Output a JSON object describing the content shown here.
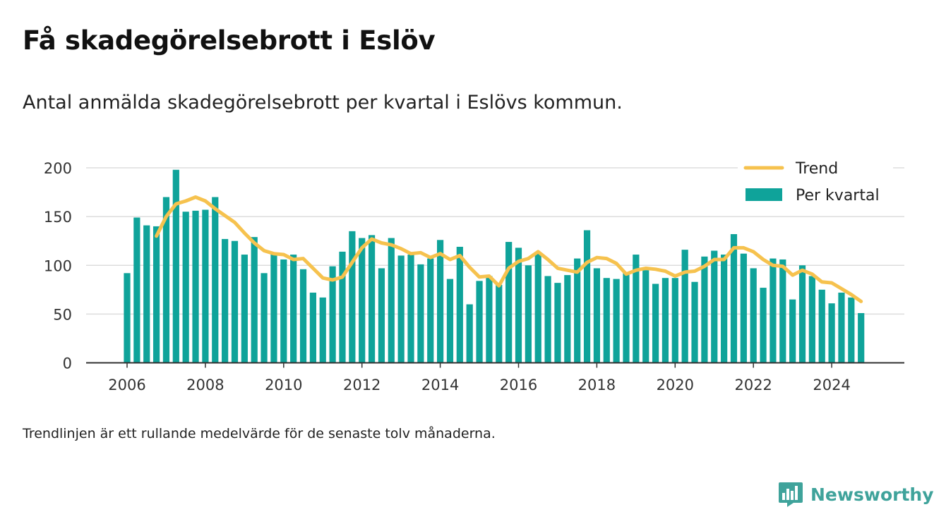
{
  "header": {
    "title": "Få skadegörelsebrott i Eslöv",
    "subtitle": "Antal anmälda skadegörelsebrott per kvartal i Eslövs kommun."
  },
  "footer": {
    "note": "Trendlinjen är ett rullande medelvärde för de senaste tolv månaderna.",
    "brand": "Newsworthy"
  },
  "icons": {
    "brand_logo": "bar-chart-speech-bubble-icon"
  },
  "colors": {
    "bars": "#0fa39a",
    "trend": "#f6c24e",
    "logo": "#3fa39b"
  },
  "chart_data": {
    "type": "bar",
    "x_tick_labels": [
      "2006",
      "2008",
      "2010",
      "2012",
      "2014",
      "2016",
      "2018",
      "2020",
      "2022",
      "2024"
    ],
    "y_tick_labels": [
      "0",
      "50",
      "100",
      "150",
      "200"
    ],
    "ylim": [
      0,
      200
    ],
    "grid": true,
    "legend_position": "top-right",
    "series": [
      {
        "name": "Per kvartal",
        "type": "bar",
        "x": [
          "2006 Q1",
          "2006 Q2",
          "2006 Q3",
          "2006 Q4",
          "2007 Q1",
          "2007 Q2",
          "2007 Q3",
          "2007 Q4",
          "2008 Q1",
          "2008 Q2",
          "2008 Q3",
          "2008 Q4",
          "2009 Q1",
          "2009 Q2",
          "2009 Q3",
          "2009 Q4",
          "2010 Q1",
          "2010 Q2",
          "2010 Q3",
          "2010 Q4",
          "2011 Q1",
          "2011 Q2",
          "2011 Q3",
          "2011 Q4",
          "2012 Q1",
          "2012 Q2",
          "2012 Q3",
          "2012 Q4",
          "2013 Q1",
          "2013 Q2",
          "2013 Q3",
          "2013 Q4",
          "2014 Q1",
          "2014 Q2",
          "2014 Q3",
          "2014 Q4",
          "2015 Q1",
          "2015 Q2",
          "2015 Q3",
          "2015 Q4",
          "2016 Q1",
          "2016 Q2",
          "2016 Q3",
          "2016 Q4",
          "2017 Q1",
          "2017 Q2",
          "2017 Q3",
          "2017 Q4",
          "2018 Q1",
          "2018 Q2",
          "2018 Q3",
          "2018 Q4",
          "2019 Q1",
          "2019 Q2",
          "2019 Q3",
          "2019 Q4",
          "2020 Q1",
          "2020 Q2",
          "2020 Q3",
          "2020 Q4",
          "2021 Q1",
          "2021 Q2",
          "2021 Q3",
          "2021 Q4",
          "2022 Q1",
          "2022 Q2",
          "2022 Q3",
          "2022 Q4",
          "2023 Q1",
          "2023 Q2",
          "2023 Q3",
          "2023 Q4",
          "2024 Q1",
          "2024 Q2",
          "2024 Q3",
          "2024 Q4"
        ],
        "values": [
          92,
          149,
          141,
          140,
          170,
          198,
          155,
          156,
          157,
          170,
          127,
          125,
          111,
          129,
          92,
          111,
          106,
          111,
          96,
          72,
          67,
          99,
          114,
          135,
          128,
          131,
          97,
          128,
          110,
          111,
          101,
          107,
          126,
          86,
          119,
          60,
          84,
          89,
          80,
          124,
          118,
          100,
          113,
          89,
          82,
          90,
          107,
          136,
          97,
          87,
          86,
          92,
          111,
          95,
          81,
          87,
          87,
          116,
          83,
          109,
          115,
          111,
          132,
          112,
          97,
          77,
          107,
          106,
          65,
          100,
          89,
          75,
          61,
          72,
          67,
          51
        ]
      },
      {
        "name": "Trend",
        "type": "line",
        "x": [
          "2006 Q4",
          "2007 Q1",
          "2007 Q2",
          "2007 Q3",
          "2007 Q4",
          "2008 Q1",
          "2008 Q2",
          "2008 Q3",
          "2008 Q4",
          "2009 Q1",
          "2009 Q2",
          "2009 Q3",
          "2009 Q4",
          "2010 Q1",
          "2010 Q2",
          "2010 Q3",
          "2010 Q4",
          "2011 Q1",
          "2011 Q2",
          "2011 Q3",
          "2011 Q4",
          "2012 Q1",
          "2012 Q2",
          "2012 Q3",
          "2012 Q4",
          "2013 Q1",
          "2013 Q2",
          "2013 Q3",
          "2013 Q4",
          "2014 Q1",
          "2014 Q2",
          "2014 Q3",
          "2014 Q4",
          "2015 Q1",
          "2015 Q2",
          "2015 Q3",
          "2015 Q4",
          "2016 Q1",
          "2016 Q2",
          "2016 Q3",
          "2016 Q4",
          "2017 Q1",
          "2017 Q2",
          "2017 Q3",
          "2017 Q4",
          "2018 Q1",
          "2018 Q2",
          "2018 Q3",
          "2018 Q4",
          "2019 Q1",
          "2019 Q2",
          "2019 Q3",
          "2019 Q4",
          "2020 Q1",
          "2020 Q2",
          "2020 Q3",
          "2020 Q4",
          "2021 Q1",
          "2021 Q2",
          "2021 Q3",
          "2021 Q4",
          "2022 Q1",
          "2022 Q2",
          "2022 Q3",
          "2022 Q4",
          "2023 Q1",
          "2023 Q2",
          "2023 Q3",
          "2023 Q4",
          "2024 Q1",
          "2024 Q2",
          "2024 Q3",
          "2024 Q4"
        ],
        "values": [
          130,
          150,
          163,
          166,
          170,
          166,
          158,
          151,
          144,
          133,
          123,
          115,
          112,
          111,
          106,
          107,
          97,
          87,
          85,
          88,
          103,
          118,
          127,
          123,
          121,
          117,
          112,
          113,
          108,
          112,
          106,
          110,
          98,
          88,
          89,
          79,
          97,
          104,
          107,
          114,
          106,
          97,
          95,
          93,
          103,
          108,
          107,
          102,
          91,
          95,
          97,
          96,
          94,
          89,
          93,
          94,
          99,
          106,
          106,
          118,
          118,
          114,
          106,
          100,
          99,
          90,
          95,
          91,
          83,
          82,
          76,
          70,
          63
        ]
      }
    ]
  }
}
